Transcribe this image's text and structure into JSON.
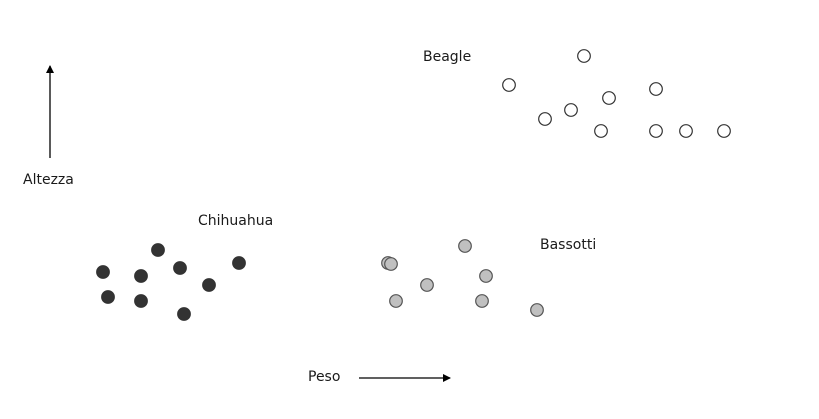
{
  "axes": {
    "x_label": "Peso",
    "y_label": "Altezza"
  },
  "groups": [
    {
      "id": "beagle",
      "label": "Beagle",
      "fill": "#ffffff",
      "stroke": "#333333"
    },
    {
      "id": "chihuahua",
      "label": "Chihuahua",
      "fill": "#333333",
      "stroke": "#333333"
    },
    {
      "id": "bassotti",
      "label": "Bassotti",
      "fill": "#c0c0c0",
      "stroke": "#555555"
    }
  ]
}
